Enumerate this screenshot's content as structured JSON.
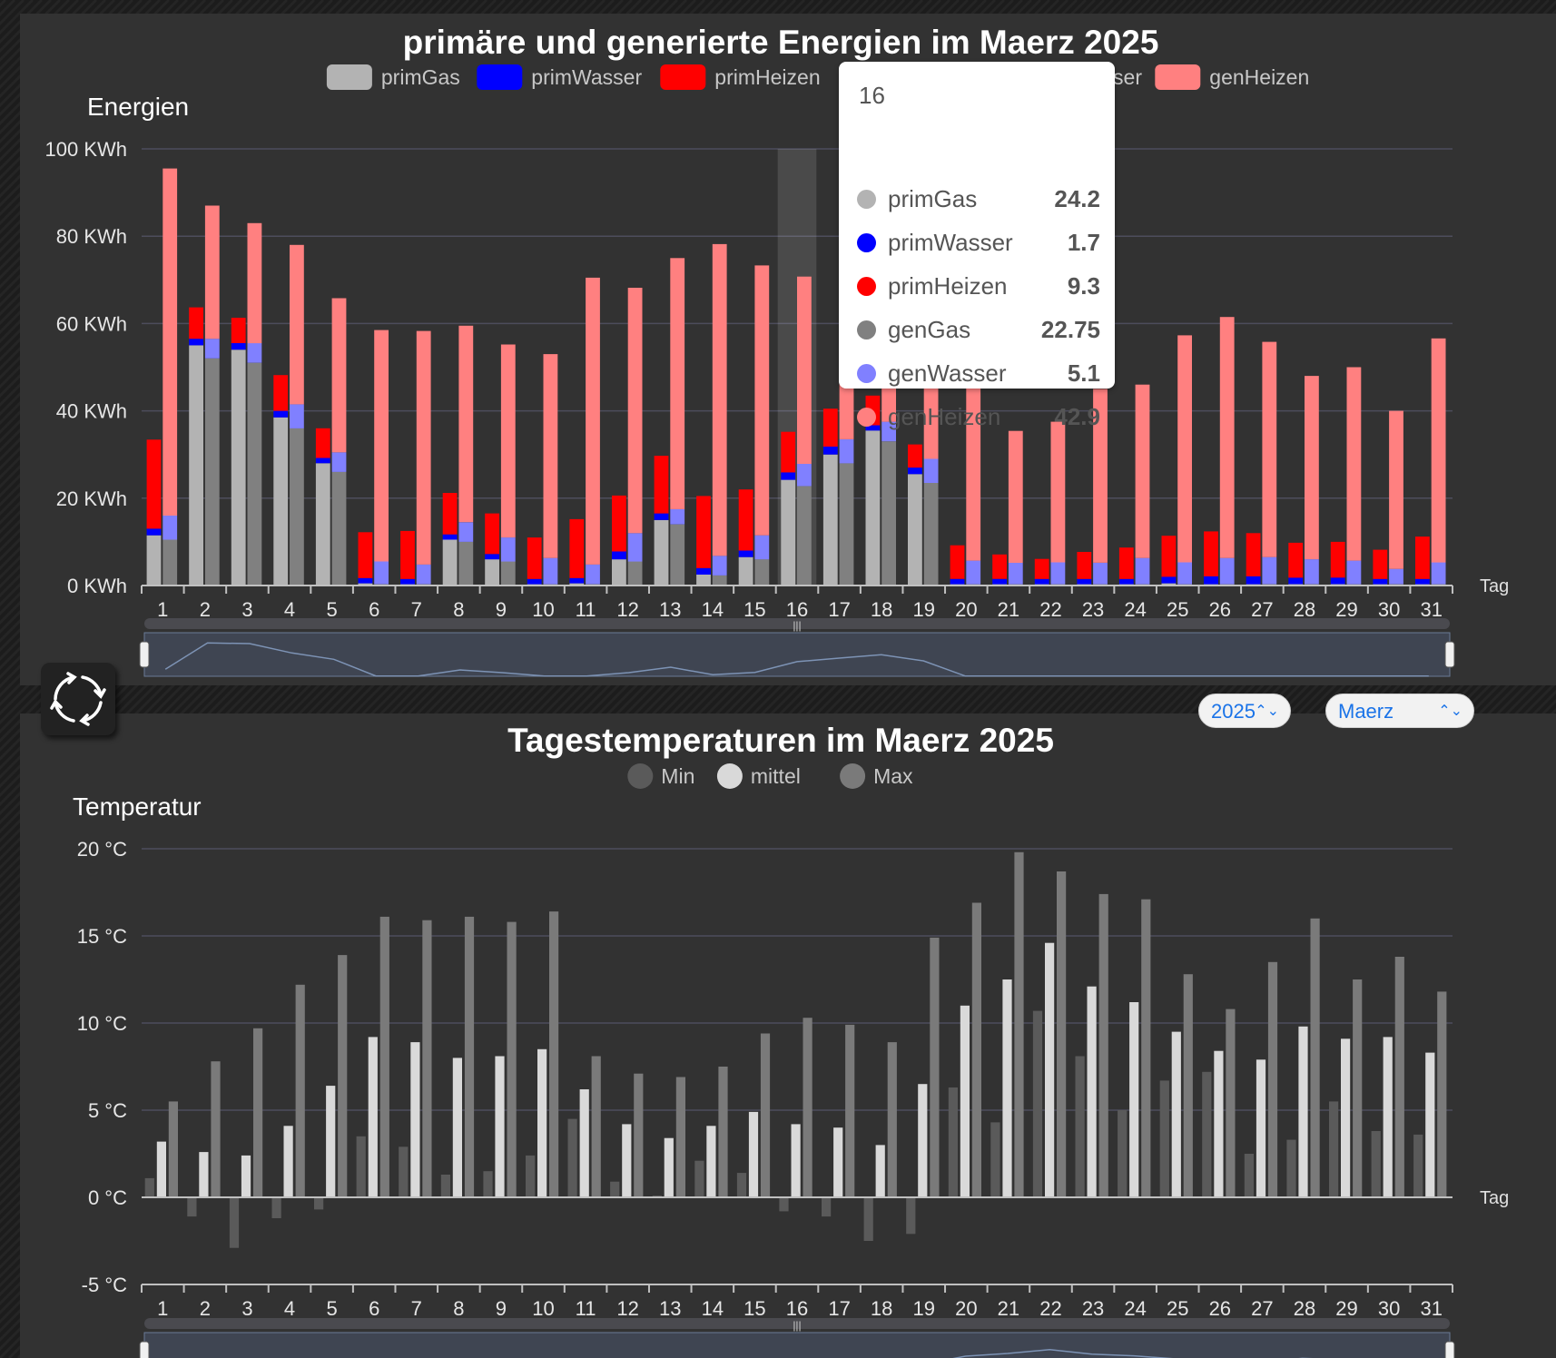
{
  "colors": {
    "primGas": "#b3b3b3",
    "primWasser": "#0000ff",
    "primHeizen": "#ff0000",
    "genGas": "#808080",
    "genWasser": "#8080ff",
    "genHeizen": "#ff8080",
    "tempMin": "#5a5a5a",
    "tempMittel": "#d9d9d9",
    "tempMax": "#7a7a7a"
  },
  "controls": {
    "year": "2025",
    "month": "Maerz",
    "refresh_icon": "refresh-icon"
  },
  "tooltip": {
    "title": "16",
    "rows": [
      {
        "name": "primGas",
        "value": "24.2",
        "color": "#b3b3b3"
      },
      {
        "name": "primWasser",
        "value": "1.7",
        "color": "#0000ff"
      },
      {
        "name": "primHeizen",
        "value": "9.3",
        "color": "#ff0000"
      },
      {
        "name": "genGas",
        "value": "22.75",
        "color": "#808080"
      },
      {
        "name": "genWasser",
        "value": "5.1",
        "color": "#8080ff"
      },
      {
        "name": "genHeizen",
        "value": "42.9",
        "color": "#ff8080"
      }
    ]
  },
  "chart_data": [
    {
      "type": "bar",
      "stacked": true,
      "title": "primäre und generierte Energien im Maerz 2025",
      "ylabel": "Energien",
      "xlabel": "Tag",
      "ylim": [
        0,
        100
      ],
      "y_ticks": [
        "0 KWh",
        "20 KWh",
        "40 KWh",
        "60 KWh",
        "80 KWh",
        "100 KWh"
      ],
      "legend": [
        "primGas",
        "primWasser",
        "primHeizen",
        "genGas",
        "genWasser",
        "genHeizen"
      ],
      "legend_position": "top",
      "highlighted_category": "16",
      "categories": [
        "1",
        "2",
        "3",
        "4",
        "5",
        "6",
        "7",
        "8",
        "9",
        "10",
        "11",
        "12",
        "13",
        "14",
        "15",
        "16",
        "17",
        "18",
        "19",
        "20",
        "21",
        "22",
        "23",
        "24",
        "25",
        "26",
        "27",
        "28",
        "29",
        "30",
        "31"
      ],
      "stacks": [
        {
          "name": "prim",
          "series": [
            {
              "name": "primGas",
              "color": "#b3b3b3",
              "values": [
                11.5,
                55,
                54,
                38.5,
                28,
                0.5,
                0.3,
                10.5,
                6,
                0.3,
                0.5,
                6,
                15,
                2.5,
                6.5,
                24.2,
                30,
                35.5,
                25.5,
                0.3,
                0.3,
                0.3,
                0.3,
                0.3,
                0.5,
                0.3,
                0.3,
                0.3,
                0.3,
                0.3,
                0.3
              ]
            },
            {
              "name": "primWasser",
              "color": "#0000ff",
              "values": [
                1.5,
                1.5,
                1.5,
                1.5,
                1.2,
                1.2,
                1.2,
                1.2,
                1.2,
                1.2,
                1.2,
                1.8,
                1.5,
                1.5,
                1.5,
                1.7,
                1.8,
                1.2,
                1.5,
                1.2,
                1.2,
                1.2,
                1.2,
                1.2,
                1.5,
                1.8,
                1.8,
                1.5,
                1.5,
                1.2,
                1.2
              ]
            },
            {
              "name": "primHeizen",
              "color": "#ff0000",
              "values": [
                20.4,
                7.2,
                5.8,
                8.2,
                6.8,
                10.5,
                11,
                9.5,
                9.3,
                9.5,
                13.5,
                12.8,
                13.2,
                16.5,
                14,
                9.3,
                8.7,
                6.8,
                5.3,
                7.7,
                5.6,
                4.6,
                6.2,
                7.2,
                9.4,
                10.3,
                9.9,
                8,
                8.2,
                6.7,
                9.7
              ]
            }
          ]
        },
        {
          "name": "gen",
          "series": [
            {
              "name": "genGas",
              "color": "#808080",
              "values": [
                10.5,
                52,
                51,
                36,
                26,
                0.3,
                0.3,
                10,
                5.5,
                0.3,
                0.3,
                5.5,
                14,
                2.3,
                6,
                22.75,
                28,
                33,
                23.5,
                0.3,
                0.3,
                0.3,
                0.3,
                0.3,
                0.3,
                0.3,
                0.3,
                0.3,
                0.3,
                0.3,
                0.3
              ]
            },
            {
              "name": "genWasser",
              "color": "#8080ff",
              "values": [
                5.5,
                4.5,
                4.5,
                5.5,
                4.5,
                5.2,
                4.5,
                4.5,
                5.5,
                6,
                4.5,
                6.5,
                3.5,
                4.5,
                5.5,
                5.1,
                5.5,
                4.5,
                5.5,
                5.4,
                4.9,
                5,
                4.9,
                6,
                5,
                6,
                6.2,
                5.7,
                5.4,
                3.5,
                5
              ]
            },
            {
              "name": "genHeizen",
              "color": "#ff8080",
              "values": [
                79.5,
                30.5,
                27.5,
                36.5,
                35.3,
                53,
                53.5,
                45,
                44.2,
                46.7,
                65.7,
                56.2,
                57.5,
                71.4,
                61.8,
                42.9,
                46,
                48,
                47.5,
                40,
                30.2,
                32.2,
                39.8,
                39.7,
                52,
                55.2,
                49.3,
                42,
                44.3,
                36.2,
                51.3
              ]
            }
          ]
        }
      ],
      "navigator": true
    },
    {
      "type": "bar",
      "title": "Tagestemperaturen im Maerz 2025",
      "ylabel": "Temperatur",
      "xlabel": "Tag",
      "ylim": [
        -5,
        20
      ],
      "y_ticks": [
        "-5 °C",
        "0 °C",
        "5 °C",
        "10 °C",
        "15 °C",
        "20 °C"
      ],
      "legend": [
        "Min",
        "mittel",
        "Max"
      ],
      "legend_position": "top",
      "categories": [
        "1",
        "2",
        "3",
        "4",
        "5",
        "6",
        "7",
        "8",
        "9",
        "10",
        "11",
        "12",
        "13",
        "14",
        "15",
        "16",
        "17",
        "18",
        "19",
        "20",
        "21",
        "22",
        "23",
        "24",
        "25",
        "26",
        "27",
        "28",
        "29",
        "30",
        "31"
      ],
      "series": [
        {
          "name": "Min",
          "color": "#5a5a5a",
          "values": [
            1.1,
            -1.1,
            -2.9,
            -1.2,
            -0.7,
            3.5,
            2.9,
            1.3,
            1.5,
            2.4,
            4.5,
            0.9,
            0.1,
            2.1,
            1.4,
            -0.8,
            -1.1,
            -2.5,
            -2.1,
            6.3,
            4.3,
            10.7,
            8.1,
            5,
            6.7,
            7.2,
            2.5,
            3.3,
            5.5,
            3.8,
            3.6
          ]
        },
        {
          "name": "mittel",
          "color": "#d9d9d9",
          "values": [
            3.2,
            2.6,
            2.4,
            4.1,
            6.4,
            9.2,
            8.9,
            8,
            8.1,
            8.5,
            6.2,
            4.2,
            3.4,
            4.1,
            4.9,
            4.2,
            4,
            3,
            6.5,
            11,
            12.5,
            14.6,
            12.1,
            11.2,
            9.5,
            8.4,
            7.9,
            9.8,
            9.1,
            9.2,
            8.3
          ]
        },
        {
          "name": "Max",
          "color": "#7a7a7a",
          "values": [
            5.5,
            7.8,
            9.7,
            12.2,
            13.9,
            16.1,
            15.9,
            16.1,
            15.8,
            16.4,
            8.1,
            7.1,
            6.9,
            7.5,
            9.4,
            10.3,
            9.9,
            8.9,
            14.9,
            16.9,
            19.8,
            18.7,
            17.4,
            17.1,
            12.8,
            10.8,
            13.5,
            16,
            12.5,
            13.8,
            11.8
          ]
        }
      ],
      "navigator": true
    }
  ]
}
